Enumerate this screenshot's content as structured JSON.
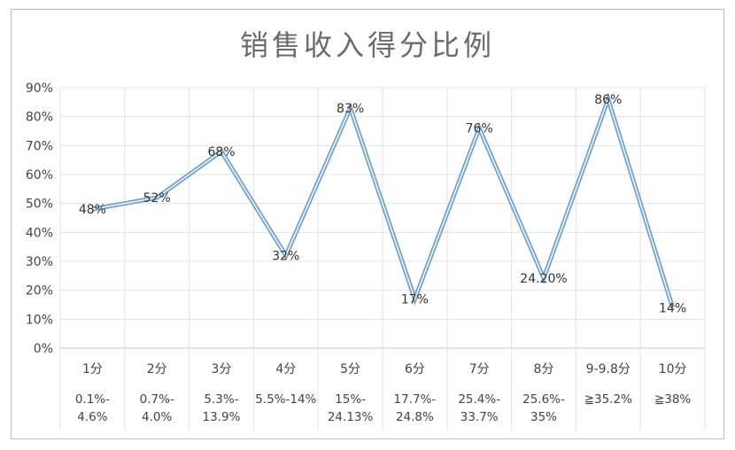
{
  "chart_data": {
    "type": "line",
    "title": "销售收入得分比例",
    "categories": [
      {
        "score": "1分",
        "range": [
          "0.1%-",
          "4.6%"
        ]
      },
      {
        "score": "2分",
        "range": [
          "0.7%-",
          "4.0%"
        ]
      },
      {
        "score": "3分",
        "range": [
          "5.3%-",
          "13.9%"
        ]
      },
      {
        "score": "4分",
        "range": [
          "5.5%-14%"
        ]
      },
      {
        "score": "5分",
        "range": [
          "15%-",
          "24.13%"
        ]
      },
      {
        "score": "6分",
        "range": [
          "17.7%-",
          "24.8%"
        ]
      },
      {
        "score": "7分",
        "range": [
          "25.4%-",
          "33.7%"
        ]
      },
      {
        "score": "8分",
        "range": [
          "25.6%-",
          "35%"
        ]
      },
      {
        "score": "9-9.8分",
        "range": [
          "≧35.2%"
        ]
      },
      {
        "score": "10分",
        "range": [
          "≧38%"
        ]
      }
    ],
    "values": [
      48,
      52,
      68,
      32,
      83,
      17,
      76,
      24.2,
      86,
      14
    ],
    "data_labels": [
      "48%",
      "52%",
      "68%",
      "32%",
      "83%",
      "17%",
      "76%",
      "24.20%",
      "86%",
      "14%"
    ],
    "y_ticks": [
      "0%",
      "10%",
      "20%",
      "30%",
      "40%",
      "50%",
      "60%",
      "70%",
      "80%",
      "90%"
    ],
    "ylim": [
      0,
      90
    ],
    "grid": true,
    "series_color": "#6fa3d6"
  }
}
